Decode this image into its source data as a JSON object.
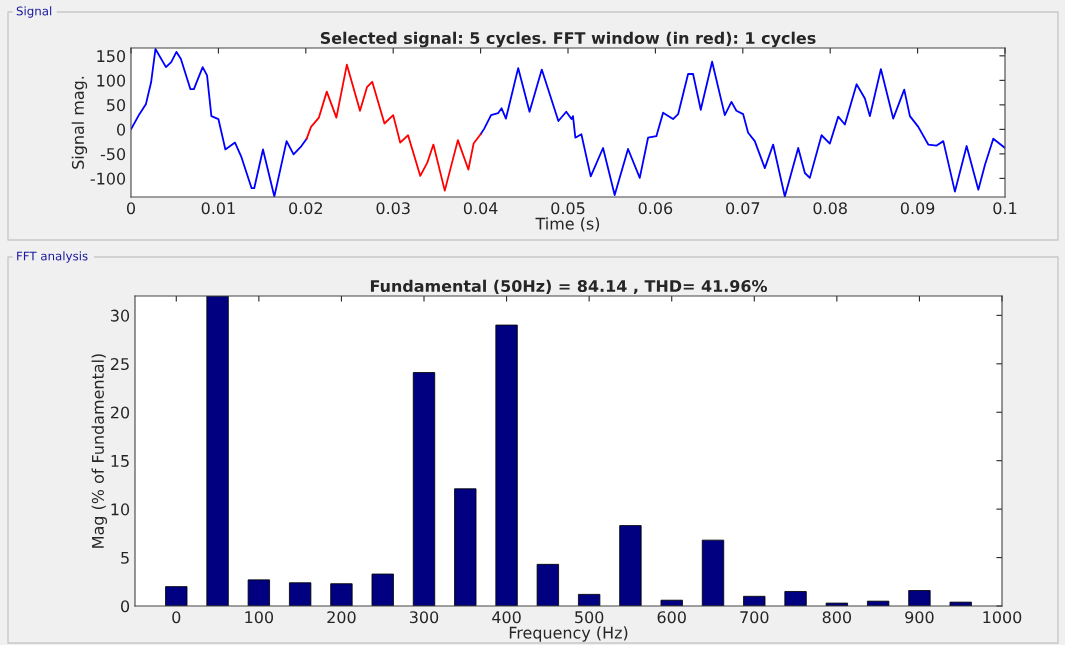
{
  "chart_data": [
    {
      "type": "line",
      "title": "Selected signal: 5 cycles. FFT window (in red): 1 cycles",
      "xlabel": "Time (s)",
      "ylabel": "Signal mag.",
      "annotations": [
        "Signal"
      ],
      "series": [
        {
          "color": "#0000ff",
          "x": [
            0,
            0.00096,
            0.0017,
            0.0023,
            0.0028,
            0.004,
            0.0046,
            0.0052,
            0.0057,
            0.0068,
            0.0072,
            0.0075,
            0.0082,
            0.0087,
            0.0092,
            0.01,
            0.0108,
            0.0119,
            0.0126,
            0.0138,
            0.0141,
            0.0151,
            0.0164,
            0.0178,
            0.0186,
            0.0195,
            0.0201,
            0.03,
            0.04,
            0.0404,
            0.0412,
            0.042,
            0.0424,
            0.0429,
            0.0443,
            0.0456,
            0.047,
            0.0489,
            0.0498,
            0.0504,
            0.05057,
            0.05084,
            0.05153,
            0.0526,
            0.05401,
            0.05534,
            0.05687,
            0.05821,
            0.05916,
            0.06011,
            0.06088,
            0.06202,
            0.0626,
            0.06374,
            0.06431,
            0.06519,
            0.06649,
            0.06794,
            0.0687,
            0.06927,
            0.07004,
            0.07061,
            0.07137,
            0.07252,
            0.07347,
            0.07481,
            0.07634,
            0.0771,
            0.07767,
            0.07901,
            0.07996,
            0.08092,
            0.08168,
            0.08302,
            0.08397,
            0.08454,
            0.0858,
            0.08721,
            0.08847,
            0.08912,
            0.09008,
            0.09122,
            0.09218,
            0.09294,
            0.09427,
            0.09561,
            0.09695,
            0.09771,
            0.09866,
            0.1
          ],
          "values": [
            0,
            31,
            51,
            96,
            164,
            127,
            137,
            158,
            144,
            82,
            82,
            96,
            127,
            110,
            27,
            21,
            -41,
            -27,
            -55,
            -120,
            -120,
            -41,
            -137,
            -24,
            -51,
            -34,
            -19,
            null,
            -10,
            1,
            29,
            33,
            43,
            22,
            125,
            36,
            122,
            17,
            36,
            21,
            27,
            -17,
            -10,
            -96,
            -38,
            -134,
            -40,
            -99,
            -17,
            -14,
            34,
            21,
            31,
            113,
            113,
            40,
            138,
            29,
            56,
            38,
            31,
            -7,
            -24,
            -79,
            -31,
            -137,
            -38,
            -89,
            -99,
            -12,
            -29,
            26,
            10,
            92,
            63,
            27,
            123,
            22,
            81,
            27,
            5,
            -31,
            -33,
            -24,
            -127,
            -34,
            -123,
            -72,
            -19,
            -38
          ]
        },
        {
          "color": "#ff0000",
          "x": [
            0.0201,
            0.0206,
            0.0215,
            0.0224,
            0.0235,
            0.0247,
            0.0262,
            0.027,
            0.0276,
            0.029,
            0.03,
            0.0308,
            0.0317,
            0.0331,
            0.0339,
            0.0346,
            0.0359,
            0.0374,
            0.0386,
            0.0392,
            0.04
          ],
          "values": [
            -19,
            5,
            24,
            77,
            24,
            132,
            38,
            86,
            97,
            12,
            29,
            -27,
            -12,
            -95,
            -68,
            -31,
            -125,
            -22,
            -82,
            -29,
            -10
          ]
        }
      ],
      "xlim": [
        0,
        0.1
      ],
      "xticks": [
        0,
        0.01,
        0.02,
        0.03,
        0.04,
        0.05,
        0.06,
        0.07,
        0.08,
        0.09,
        0.1
      ],
      "ylim": [
        -138,
        166
      ],
      "yticks": [
        -100,
        -50,
        0,
        50,
        100,
        150
      ],
      "grid": false,
      "line_style": "solid"
    },
    {
      "type": "bar",
      "title": "Fundamental (50Hz) = 84.14 , THD= 41.96%",
      "xlabel": "Frequency (Hz)",
      "ylabel": "Mag (% of Fundamental)",
      "annotations": [
        "FFT analysis"
      ],
      "x": [
        0,
        50,
        100,
        150,
        200,
        250,
        300,
        350,
        400,
        450,
        500,
        550,
        600,
        650,
        700,
        750,
        800,
        850,
        900,
        950
      ],
      "values": [
        2.0,
        32,
        2.7,
        2.4,
        2.3,
        3.3,
        24.1,
        12.1,
        29.0,
        4.3,
        1.2,
        8.3,
        0.6,
        6.8,
        1.0,
        1.5,
        0.3,
        0.5,
        1.6,
        0.4
      ],
      "color": "#000080",
      "xlim": [
        -50,
        1000
      ],
      "xticks": [
        0,
        100,
        200,
        300,
        400,
        500,
        600,
        700,
        800,
        900,
        1000
      ],
      "ylim": [
        0,
        32
      ],
      "yticks": [
        0,
        5,
        10,
        15,
        20,
        25,
        30
      ],
      "grid": false
    }
  ]
}
